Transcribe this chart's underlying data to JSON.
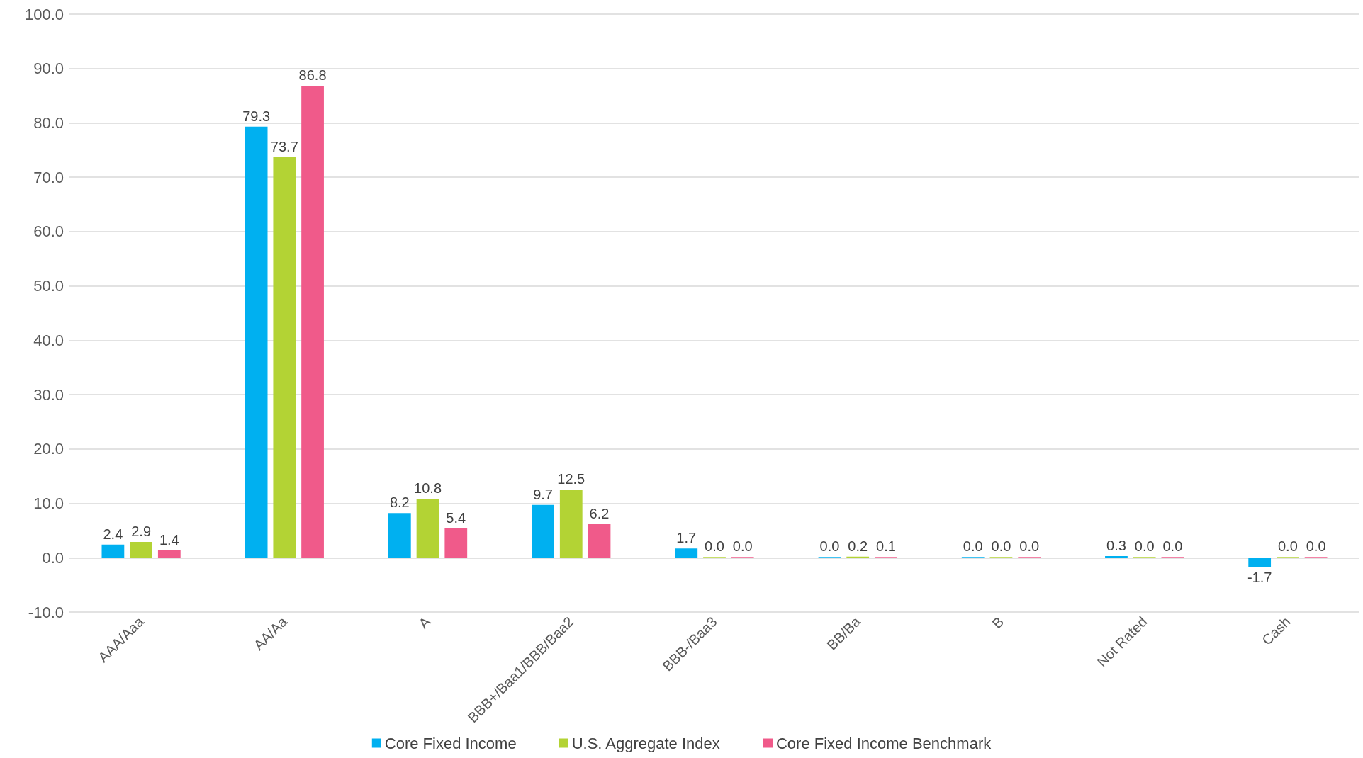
{
  "chart_data": {
    "type": "bar",
    "categories": [
      "AAA/Aaa",
      "AA/Aa",
      "A",
      "BBB+/Baa1/BBB/Baa2",
      "BBB-/Baa3",
      "BB/Ba",
      "B",
      "Not Rated",
      "Cash"
    ],
    "series": [
      {
        "name": "Core Fixed Income",
        "color": "#00b0f0",
        "values": [
          2.4,
          79.3,
          8.2,
          9.7,
          1.7,
          0.0,
          0.0,
          0.3,
          -1.7
        ],
        "value_labels": [
          "2.4",
          "79.3",
          "8.2",
          "9.7",
          "1.7",
          "0.0",
          "0.0",
          "0.3",
          "-1.7"
        ]
      },
      {
        "name": "U.S. Aggregate Index",
        "color": "#b3d334",
        "values": [
          2.9,
          73.7,
          10.8,
          12.5,
          0.0,
          0.2,
          0.0,
          0.0,
          0.0
        ],
        "value_labels": [
          "2.9",
          "73.7",
          "10.8",
          "12.5",
          "0.0",
          "0.2",
          "0.0",
          "0.0",
          "0.0"
        ]
      },
      {
        "name": "Core Fixed Income Benchmark",
        "color": "#f05a8a",
        "values": [
          1.4,
          86.8,
          5.4,
          6.2,
          0.0,
          0.1,
          0.0,
          0.0,
          0.0
        ],
        "value_labels": [
          "1.4",
          "86.8",
          "5.4",
          "6.2",
          "0.0",
          "0.1",
          "0.0",
          "0.0",
          "0.0"
        ]
      }
    ],
    "ylim": [
      -10,
      100
    ],
    "yticks": [
      {
        "value": -10,
        "label": "-10.0"
      },
      {
        "value": 0,
        "label": "0.0"
      },
      {
        "value": 10,
        "label": "10.0"
      },
      {
        "value": 20,
        "label": "20.0"
      },
      {
        "value": 30,
        "label": "30.0"
      },
      {
        "value": 40,
        "label": "40.0"
      },
      {
        "value": 50,
        "label": "50.0"
      },
      {
        "value": 60,
        "label": "60.0"
      },
      {
        "value": 70,
        "label": "70.0"
      },
      {
        "value": 80,
        "label": "80.0"
      },
      {
        "value": 90,
        "label": "90.0"
      },
      {
        "value": 100,
        "label": "100.0"
      }
    ],
    "grid": "y",
    "legend": "bottom"
  }
}
